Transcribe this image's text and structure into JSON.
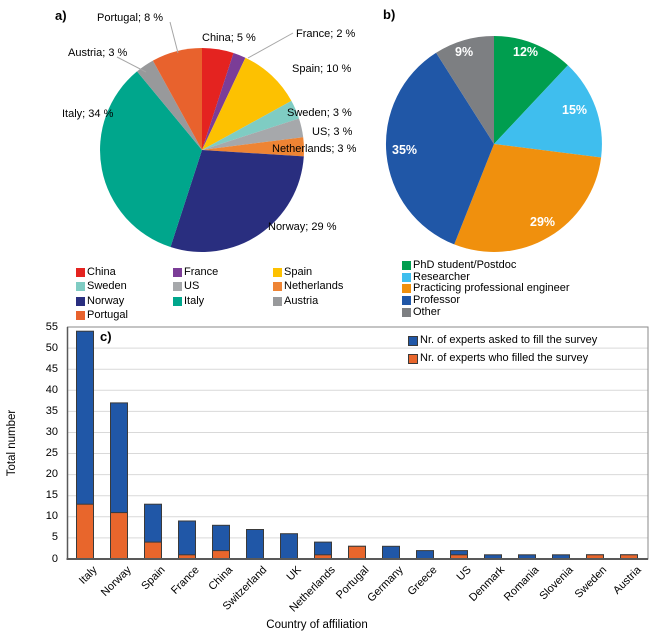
{
  "panels": {
    "a": "a)",
    "b": "b)",
    "c": "c)"
  },
  "chart_data": [
    {
      "type": "pie",
      "panel": "a",
      "legend_position": "bottom",
      "label_style": "callout",
      "slices": [
        {
          "label": "China",
          "value": 5,
          "color": "#e42320",
          "callout": "China; 5 %"
        },
        {
          "label": "France",
          "value": 2,
          "color": "#7b3d97",
          "callout": "France; 2 %"
        },
        {
          "label": "Spain",
          "value": 10,
          "color": "#fdc101",
          "callout": "Spain; 10 %"
        },
        {
          "label": "Sweden",
          "value": 3,
          "color": "#7fccc3",
          "callout": "Sweden; 3 %"
        },
        {
          "label": "US",
          "value": 3,
          "color": "#a6a8ab",
          "callout": "US; 3 %"
        },
        {
          "label": "Netherlands",
          "value": 3,
          "color": "#ee8434",
          "callout": "Netherlands; 3 %"
        },
        {
          "label": "Norway",
          "value": 29,
          "color": "#292e7f",
          "callout": "Norway; 29 %"
        },
        {
          "label": "Italy",
          "value": 34,
          "color": "#00a68c",
          "callout": "Italy; 34 %"
        },
        {
          "label": "Austria",
          "value": 3,
          "color": "#98999b",
          "callout": "Austria; 3 %"
        },
        {
          "label": "Portugal",
          "value": 8,
          "color": "#e8622d",
          "callout": "Portugal; 8 %"
        }
      ]
    },
    {
      "type": "pie",
      "panel": "b",
      "legend_position": "bottom",
      "label_style": "inside-percent",
      "slices": [
        {
          "label": "PhD student/Postdoc",
          "value": 12,
          "color": "#009e4f",
          "display": "12%"
        },
        {
          "label": "Researcher",
          "value": 15,
          "color": "#3fbeee",
          "display": "15%"
        },
        {
          "label": "Practicing professional engineer",
          "value": 29,
          "color": "#f0900d",
          "display": "29%"
        },
        {
          "label": "Professor",
          "value": 35,
          "color": "#2057a7",
          "display": "35%"
        },
        {
          "label": "Other",
          "value": 9,
          "color": "#7d7f82",
          "display": "9%"
        }
      ]
    },
    {
      "type": "bar",
      "panel": "c",
      "mode": "overlay",
      "categories": [
        "Italy",
        "Norway",
        "Spain",
        "France",
        "China",
        "Switzerland",
        "UK",
        "Netherlands",
        "Portugal",
        "Germany",
        "Greece",
        "US",
        "Denmark",
        "Romania",
        "Slovenia",
        "Sweden",
        "Austria"
      ],
      "series": [
        {
          "name": "Nr. of experts asked to fill the survey",
          "color": "#2057a7",
          "values": [
            54,
            37,
            13,
            9,
            8,
            7,
            6,
            4,
            3,
            3,
            2,
            2,
            1,
            1,
            1,
            1,
            1
          ]
        },
        {
          "name": "Nr. of experts who filled the survey",
          "color": "#e8662c",
          "values": [
            13,
            11,
            4,
            1,
            2,
            0,
            0,
            1,
            3,
            0,
            0,
            1,
            0,
            0,
            0,
            1,
            1
          ]
        }
      ],
      "xlabel": "Country of affiliation",
      "ylabel": "Total number",
      "ylim": [
        0,
        55
      ],
      "ytick_step": 5,
      "grid": true,
      "legend_position": "top-right-inside"
    }
  ],
  "style_colors": {
    "bar_outline": "#3a3a3a",
    "gridline": "#d9d9d9",
    "plot_border": "#8a8a8a",
    "axis_line": "#595959",
    "leader_line": "#a6a6a6"
  }
}
